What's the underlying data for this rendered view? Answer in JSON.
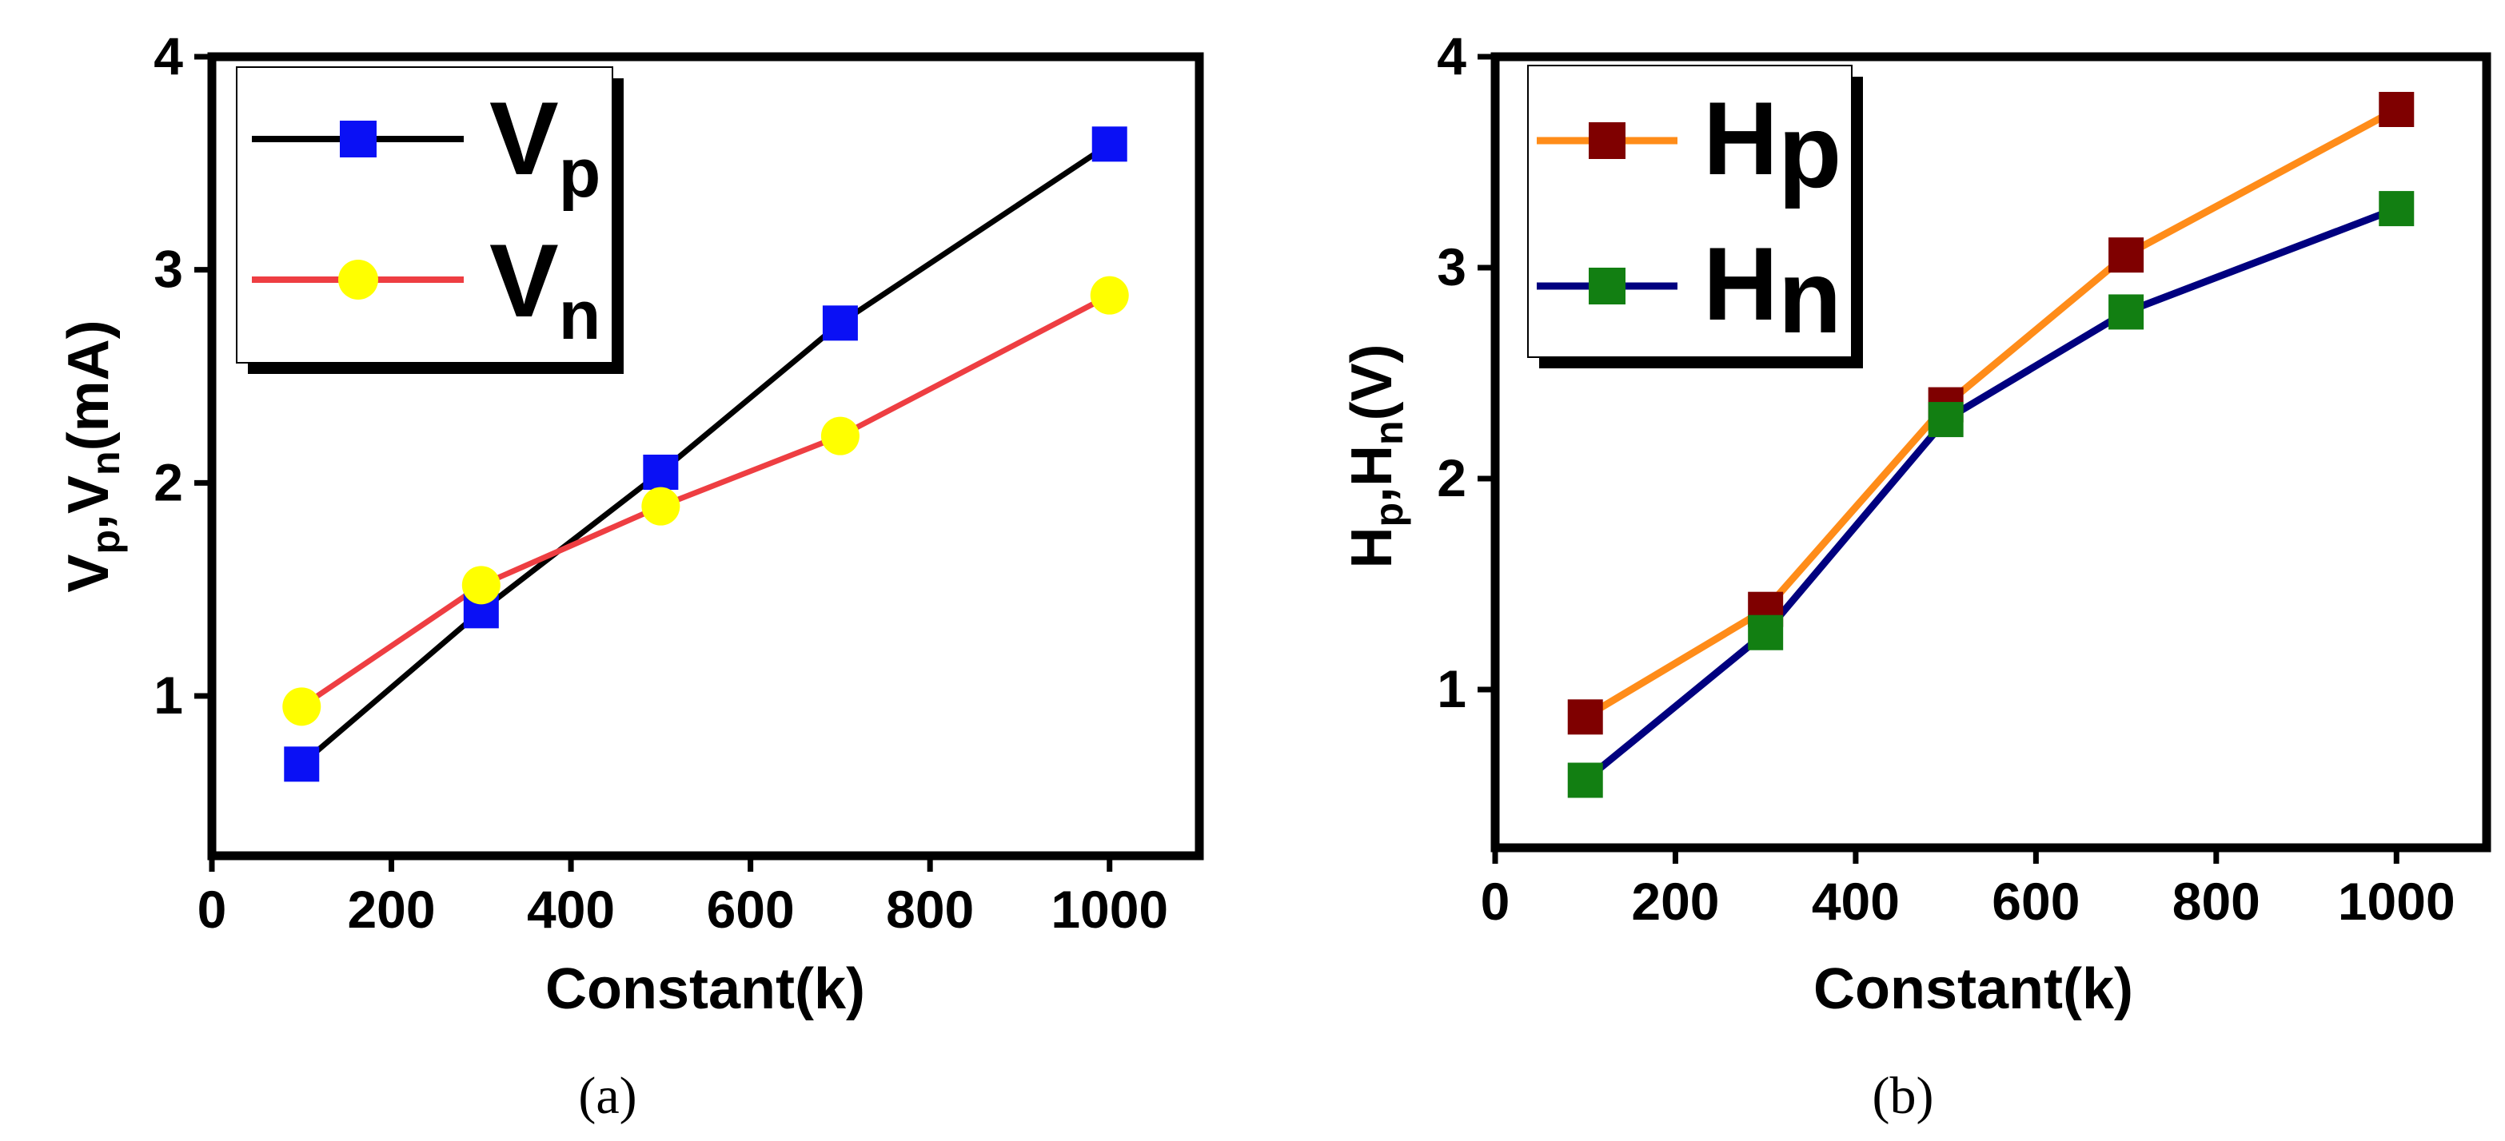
{
  "chart_data": [
    {
      "type": "line",
      "caption": "(a)",
      "xlabel": "Constant(k)",
      "ylabel": {
        "base1": "V",
        "sub1": "p",
        "sep": ",",
        "base2": "V",
        "sub2": "n",
        "unit": "(mA)"
      },
      "x": [
        100,
        300,
        500,
        700,
        1000
      ],
      "xlim": [
        0,
        1100
      ],
      "ylim": [
        0.25,
        4
      ],
      "xticks": [
        "0",
        "200",
        "400",
        "600",
        "800",
        "1000"
      ],
      "yticks": [
        "1",
        "2",
        "3",
        "4"
      ],
      "legend_position": "top-left",
      "series": [
        {
          "name": "V",
          "sub": "p",
          "values": [
            0.68,
            1.4,
            2.05,
            2.75,
            3.59
          ],
          "line_color": "#000000",
          "marker": "square",
          "marker_color": "#0a10f5"
        },
        {
          "name": "V",
          "sub": "n",
          "values": [
            0.95,
            1.52,
            1.89,
            2.22,
            2.88
          ],
          "line_color": "#ee3e42",
          "marker": "circle",
          "marker_color": "#ffff00"
        }
      ]
    },
    {
      "type": "line",
      "caption": "(b)",
      "xlabel": "Constant(k)",
      "ylabel": {
        "base1": "H",
        "sub1": "p",
        "sep": ",",
        "base2": "H",
        "sub2": "n",
        "unit": "(V)"
      },
      "x": [
        100,
        300,
        500,
        700,
        1000
      ],
      "xlim": [
        0,
        1100
      ],
      "ylim": [
        0.25,
        4
      ],
      "xticks": [
        "0",
        "200",
        "400",
        "600",
        "800",
        "1000"
      ],
      "yticks": [
        "1",
        "2",
        "3",
        "4"
      ],
      "legend_position": "top-left",
      "series": [
        {
          "name": "H",
          "sub": "p",
          "values": [
            0.87,
            1.38,
            2.35,
            3.06,
            3.75
          ],
          "line_color": "#ff8c19",
          "marker": "square",
          "marker_color": "#7f0000"
        },
        {
          "name": "H",
          "sub": "n",
          "values": [
            0.57,
            1.27,
            2.28,
            2.79,
            3.28
          ],
          "line_color": "#00007f",
          "marker": "square",
          "marker_color": "#127f12"
        }
      ]
    }
  ]
}
